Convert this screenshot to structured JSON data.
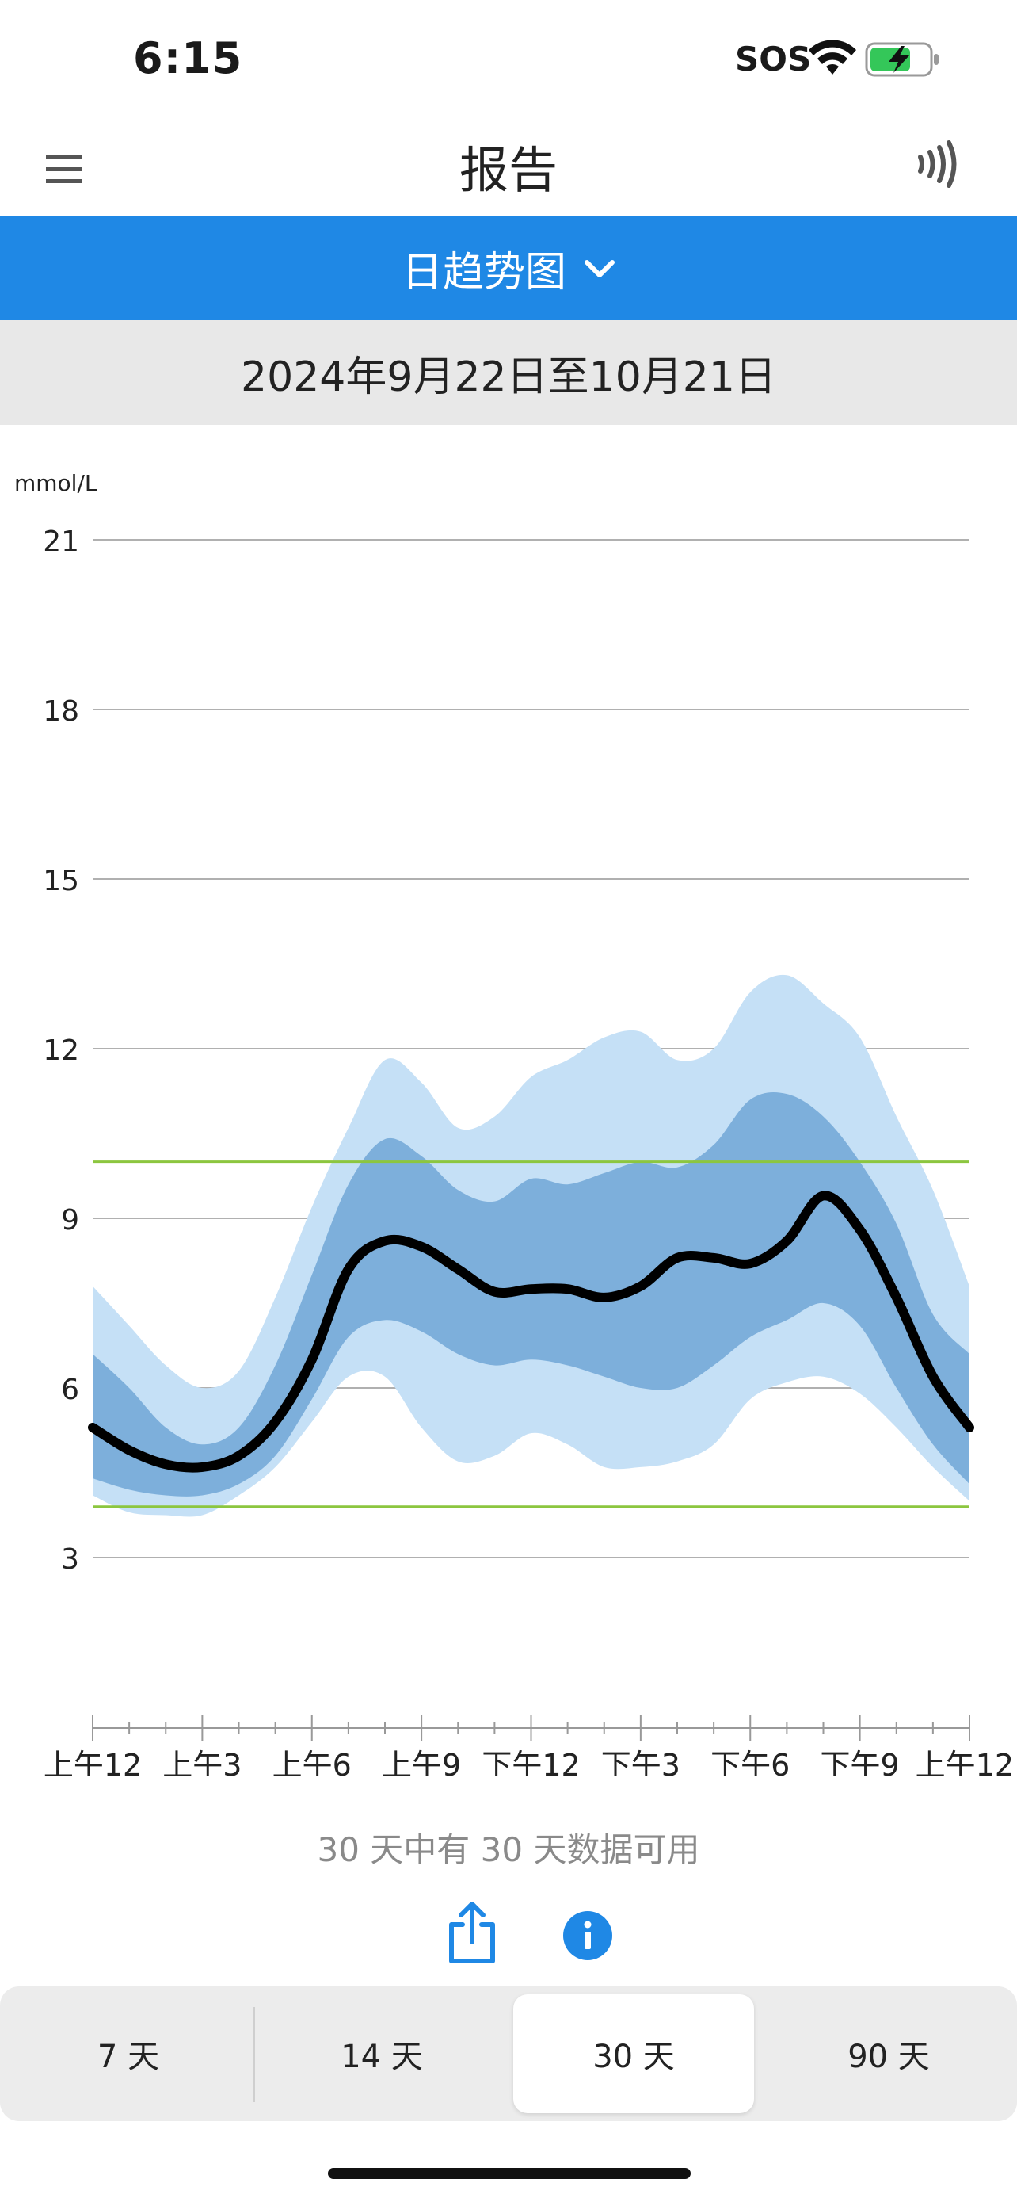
{
  "status_bar": {
    "time": "6:15",
    "sos": "SOS",
    "icons": [
      "wifi-icon",
      "battery-charging-icon"
    ]
  },
  "nav": {
    "title": "报告",
    "menu_icon": "hamburger-menu-icon",
    "scan_icon": "nfc-scan-icon"
  },
  "report_selector": {
    "label": "日趋势图",
    "icon": "chevron-down-icon"
  },
  "date_range": "2024年9月22日至10月21日",
  "chart_data": {
    "type": "area",
    "ylabel": "mmol/L",
    "ylim": [
      0,
      21
    ],
    "yticks": [
      21,
      18,
      15,
      12,
      9,
      6,
      3
    ],
    "x_tick_labels": [
      "上午12",
      "上午3",
      "上午6",
      "上午9",
      "下午12",
      "下午3",
      "下午6",
      "下午9",
      "上午12"
    ],
    "x_hours": [
      0,
      1,
      2,
      3,
      4,
      5,
      6,
      7,
      8,
      9,
      10,
      11,
      12,
      13,
      14,
      15,
      16,
      17,
      18,
      19,
      20,
      21,
      22,
      23,
      24
    ],
    "target_range": [
      3.9,
      10.0
    ],
    "grid": true,
    "colors": {
      "outer_band": "#c5e0f6",
      "inner_band": "#7dafdb",
      "median_line": "#000000",
      "target_line": "#8cc63f",
      "grid_line": "#b0b0b0"
    },
    "series": [
      {
        "role": "p95",
        "values": [
          7.8,
          7.1,
          6.4,
          6.0,
          6.3,
          7.6,
          9.2,
          10.6,
          11.8,
          11.4,
          10.6,
          10.8,
          11.5,
          11.8,
          12.2,
          12.3,
          11.8,
          12.0,
          13.0,
          13.3,
          12.8,
          12.2,
          10.8,
          9.5,
          7.8
        ]
      },
      {
        "role": "p75",
        "values": [
          6.6,
          6.0,
          5.3,
          5.0,
          5.3,
          6.4,
          8.0,
          9.6,
          10.4,
          10.1,
          9.5,
          9.3,
          9.7,
          9.6,
          9.8,
          10.0,
          9.9,
          10.3,
          11.1,
          11.2,
          10.8,
          10.0,
          8.9,
          7.3,
          6.6
        ]
      },
      {
        "role": "median",
        "values": [
          5.3,
          4.9,
          4.65,
          4.6,
          4.8,
          5.4,
          6.5,
          8.1,
          8.6,
          8.5,
          8.1,
          7.7,
          7.75,
          7.75,
          7.6,
          7.8,
          8.3,
          8.3,
          8.2,
          8.6,
          9.4,
          8.8,
          7.6,
          6.2,
          5.3
        ]
      },
      {
        "role": "p25",
        "values": [
          4.4,
          4.2,
          4.1,
          4.1,
          4.3,
          4.8,
          5.8,
          6.9,
          7.2,
          7.0,
          6.6,
          6.4,
          6.5,
          6.4,
          6.2,
          6.0,
          6.0,
          6.4,
          6.9,
          7.2,
          7.5,
          7.1,
          6.0,
          5.0,
          4.3
        ]
      },
      {
        "role": "p5",
        "values": [
          4.1,
          3.8,
          3.75,
          3.75,
          4.1,
          4.6,
          5.4,
          6.2,
          6.2,
          5.3,
          4.7,
          4.8,
          5.2,
          5.0,
          4.6,
          4.6,
          4.7,
          5.0,
          5.8,
          6.1,
          6.2,
          5.9,
          5.3,
          4.6,
          4.0
        ]
      }
    ]
  },
  "data_available": "30 天中有 30 天数据可用",
  "actions": {
    "share_icon": "share-icon",
    "info_icon": "info-icon"
  },
  "periods": [
    {
      "label": "7 天",
      "selected": false
    },
    {
      "label": "14 天",
      "selected": false
    },
    {
      "label": "30 天",
      "selected": true
    },
    {
      "label": "90 天",
      "selected": false
    }
  ]
}
